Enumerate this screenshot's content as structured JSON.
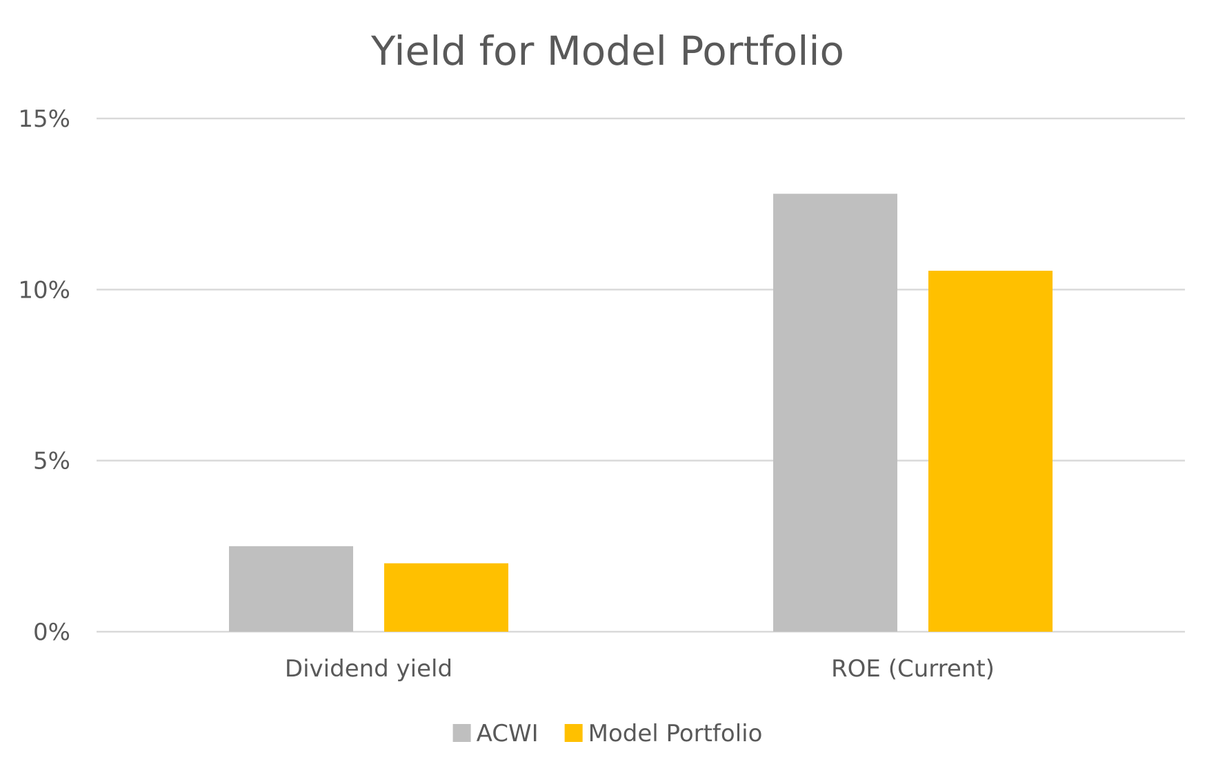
{
  "chart_data": {
    "type": "bar",
    "title": "Yield for Model Portfolio",
    "xlabel": "",
    "ylabel": "",
    "categories": [
      "Dividend yield",
      "ROE (Current)"
    ],
    "series": [
      {
        "name": "ACWI",
        "values": [
          2.5,
          12.8
        ],
        "color": "#bfbfbf"
      },
      {
        "name": "Model Portfolio",
        "values": [
          2.0,
          10.55
        ],
        "color": "#ffc000"
      }
    ],
    "ylim": [
      0,
      15
    ],
    "yticks": [
      0,
      5,
      10,
      15
    ],
    "ytick_labels": [
      "0%",
      "5%",
      "10%",
      "15%"
    ],
    "grid": true,
    "legend_position": "bottom"
  }
}
